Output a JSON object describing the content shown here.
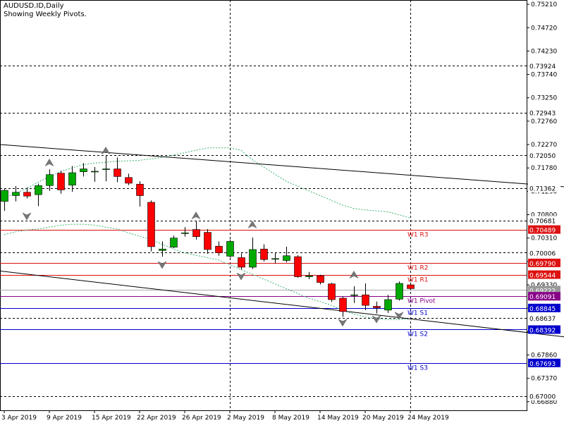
{
  "header": {
    "symbol_line": "AUDUSD.ID,Daily",
    "subtitle": "Showing Weekly Pivots."
  },
  "chart_data": {
    "type": "candlestick",
    "symbol": "AUDUSD.ID",
    "timeframe": "Daily",
    "ylim": [
      0.667,
      0.753
    ],
    "ticks": [
      "0.75210",
      "0.74720",
      "0.74230",
      "0.73740",
      "0.73250",
      "0.72760",
      "0.72270",
      "0.71780",
      "0.71290",
      "0.70800",
      "0.70310",
      "0.69820",
      "0.69330",
      "0.68840",
      "0.68350",
      "0.67860",
      "0.67370",
      "0.66880"
    ],
    "x_labels": [
      {
        "i": 0,
        "label": "3 Apr 2019"
      },
      {
        "i": 4,
        "label": "9 Apr 2019"
      },
      {
        "i": 8,
        "label": "15 Apr 2019"
      },
      {
        "i": 12,
        "label": "22 Apr 2019"
      },
      {
        "i": 16,
        "label": "26 Apr 2019"
      },
      {
        "i": 20,
        "label": "2 May 2019"
      },
      {
        "i": 24,
        "label": "8 May 2019"
      },
      {
        "i": 28,
        "label": "14 May 2019"
      },
      {
        "i": 32,
        "label": "20 May 2019"
      },
      {
        "i": 36,
        "label": "24 May 2019"
      }
    ],
    "candles": [
      {
        "o": 0.7108,
        "h": 0.7135,
        "l": 0.7088,
        "c": 0.7131
      },
      {
        "o": 0.712,
        "h": 0.714,
        "l": 0.7108,
        "c": 0.7127
      },
      {
        "o": 0.7127,
        "h": 0.7137,
        "l": 0.7114,
        "c": 0.7119
      },
      {
        "o": 0.7122,
        "h": 0.7145,
        "l": 0.7098,
        "c": 0.7141
      },
      {
        "o": 0.7141,
        "h": 0.7175,
        "l": 0.713,
        "c": 0.7164
      },
      {
        "o": 0.7167,
        "h": 0.7172,
        "l": 0.7124,
        "c": 0.7132
      },
      {
        "o": 0.7142,
        "h": 0.7182,
        "l": 0.7128,
        "c": 0.7168
      },
      {
        "o": 0.717,
        "h": 0.7188,
        "l": 0.716,
        "c": 0.7176
      },
      {
        "o": 0.717,
        "h": 0.718,
        "l": 0.7149,
        "c": 0.7171
      },
      {
        "o": 0.7175,
        "h": 0.7204,
        "l": 0.715,
        "c": 0.7176
      },
      {
        "o": 0.7176,
        "h": 0.72,
        "l": 0.7148,
        "c": 0.716
      },
      {
        "o": 0.7158,
        "h": 0.7166,
        "l": 0.7142,
        "c": 0.7146
      },
      {
        "o": 0.7144,
        "h": 0.715,
        "l": 0.7097,
        "c": 0.712
      },
      {
        "o": 0.7106,
        "h": 0.711,
        "l": 0.7003,
        "c": 0.7013
      },
      {
        "o": 0.7005,
        "h": 0.7024,
        "l": 0.6992,
        "c": 0.7008
      },
      {
        "o": 0.7012,
        "h": 0.7036,
        "l": 0.701,
        "c": 0.7031
      },
      {
        "o": 0.7041,
        "h": 0.7054,
        "l": 0.7034,
        "c": 0.7042
      },
      {
        "o": 0.7049,
        "h": 0.7067,
        "l": 0.7028,
        "c": 0.7034
      },
      {
        "o": 0.7043,
        "h": 0.705,
        "l": 0.6998,
        "c": 0.7007
      },
      {
        "o": 0.7014,
        "h": 0.7024,
        "l": 0.6994,
        "c": 0.7
      },
      {
        "o": 0.6993,
        "h": 0.7028,
        "l": 0.699,
        "c": 0.7024
      },
      {
        "o": 0.699,
        "h": 0.6999,
        "l": 0.6965,
        "c": 0.697
      },
      {
        "o": 0.697,
        "h": 0.7032,
        "l": 0.6966,
        "c": 0.7007
      },
      {
        "o": 0.7008,
        "h": 0.7018,
        "l": 0.6982,
        "c": 0.6986
      },
      {
        "o": 0.6987,
        "h": 0.7001,
        "l": 0.6978,
        "c": 0.6988
      },
      {
        "o": 0.6984,
        "h": 0.7013,
        "l": 0.698,
        "c": 0.6994
      },
      {
        "o": 0.6992,
        "h": 0.6995,
        "l": 0.6948,
        "c": 0.695
      },
      {
        "o": 0.695,
        "h": 0.696,
        "l": 0.6945,
        "c": 0.6952
      },
      {
        "o": 0.6952,
        "h": 0.6954,
        "l": 0.6934,
        "c": 0.6938
      },
      {
        "o": 0.6935,
        "h": 0.6937,
        "l": 0.6897,
        "c": 0.6902
      },
      {
        "o": 0.6905,
        "h": 0.6908,
        "l": 0.6866,
        "c": 0.6877
      },
      {
        "o": 0.6912,
        "h": 0.693,
        "l": 0.6895,
        "c": 0.6912
      },
      {
        "o": 0.6912,
        "h": 0.6936,
        "l": 0.688,
        "c": 0.689
      },
      {
        "o": 0.6888,
        "h": 0.6898,
        "l": 0.6873,
        "c": 0.6885
      },
      {
        "o": 0.688,
        "h": 0.6912,
        "l": 0.6874,
        "c": 0.6902
      },
      {
        "o": 0.6903,
        "h": 0.694,
        "l": 0.69,
        "c": 0.6936
      },
      {
        "o": 0.6933,
        "h": 0.6938,
        "l": 0.6922,
        "c": 0.6925
      }
    ],
    "fractals": {
      "up": [
        {
          "i": 4,
          "v": 0.7188
        },
        {
          "i": 9,
          "v": 0.7213
        },
        {
          "i": 17,
          "v": 0.7077
        },
        {
          "i": 22,
          "v": 0.7058
        },
        {
          "i": 31,
          "v": 0.6953
        }
      ],
      "down": [
        {
          "i": 2,
          "v": 0.7078
        },
        {
          "i": 14,
          "v": 0.6976
        },
        {
          "i": 21,
          "v": 0.6952
        },
        {
          "i": 30,
          "v": 0.6855
        },
        {
          "i": 33,
          "v": 0.6862
        },
        {
          "i": 35,
          "v": 0.687
        }
      ]
    },
    "envelope": {
      "upper": [
        0.7115,
        0.7125,
        0.7135,
        0.7148,
        0.716,
        0.717,
        0.7178,
        0.7185,
        0.7188,
        0.719,
        0.7192,
        0.7193,
        0.7194,
        0.7197,
        0.72,
        0.7205,
        0.721,
        0.7215,
        0.722,
        0.722,
        0.722,
        0.7215,
        0.7195,
        0.718,
        0.7165,
        0.715,
        0.714,
        0.713,
        0.712,
        0.711,
        0.71,
        0.7093,
        0.709,
        0.7088,
        0.7086,
        0.708,
        0.7073
      ],
      "lower": [
        0.7038,
        0.7044,
        0.7048,
        0.705,
        0.7054,
        0.7058,
        0.706,
        0.706,
        0.7058,
        0.7054,
        0.705,
        0.7042,
        0.7035,
        0.7028,
        0.7018,
        0.7008,
        0.7,
        0.6995,
        0.699,
        0.6985,
        0.6975,
        0.6965,
        0.6955,
        0.6945,
        0.6935,
        0.6925,
        0.6915,
        0.6905,
        0.6898,
        0.689,
        0.688,
        0.6872,
        0.6866,
        0.6862,
        0.686,
        0.686,
        0.6862
      ]
    },
    "trendlines": [
      {
        "i1": 0,
        "v1": 0.7227,
        "i2": 50,
        "v2": 0.7138
      },
      {
        "i1": 0,
        "v1": 0.6962,
        "i2": 50,
        "v2": 0.6823
      }
    ],
    "pivots": [
      {
        "label": "W1 R3",
        "value": 0.70489,
        "color": "#dd1111",
        "text": "0.70489"
      },
      {
        "label": "W1 R2",
        "value": 0.6979,
        "color": "#dd1111",
        "text": "0.69790"
      },
      {
        "label": "W1 R1",
        "value": 0.69544,
        "color": "#dd1111",
        "text": "0.69544"
      },
      {
        "label": "W1 Pivot",
        "value": 0.69091,
        "color": "#880088",
        "text": "0.69091"
      },
      {
        "label": "W1 S1",
        "value": 0.68845,
        "color": "#0000cc",
        "text": "0.68845"
      },
      {
        "label": "W1 S2",
        "value": 0.68392,
        "color": "#0000cc",
        "text": "0.68392"
      },
      {
        "label": "W1 S3",
        "value": 0.67693,
        "color": "#0000cc",
        "text": "0.67693"
      }
    ],
    "hlines": [
      {
        "value": 0.73924,
        "text": "0.73924"
      },
      {
        "value": 0.72943,
        "text": "0.72943"
      },
      {
        "value": 0.7205,
        "text": "0.72050"
      },
      {
        "value": 0.71362,
        "text": "0.71362"
      },
      {
        "value": 0.70681,
        "text": "0.70681"
      },
      {
        "value": 0.70006,
        "text": "0.70006"
      },
      {
        "value": 0.68637,
        "text": "0.68637"
      },
      {
        "value": 0.67,
        "text": "0.67000"
      }
    ],
    "current_price": {
      "value": 0.69222,
      "text": "0.69222"
    },
    "last_label": {
      "value": 0.69091,
      "text": "0.69091"
    },
    "vlines_at": [
      20,
      36
    ]
  }
}
